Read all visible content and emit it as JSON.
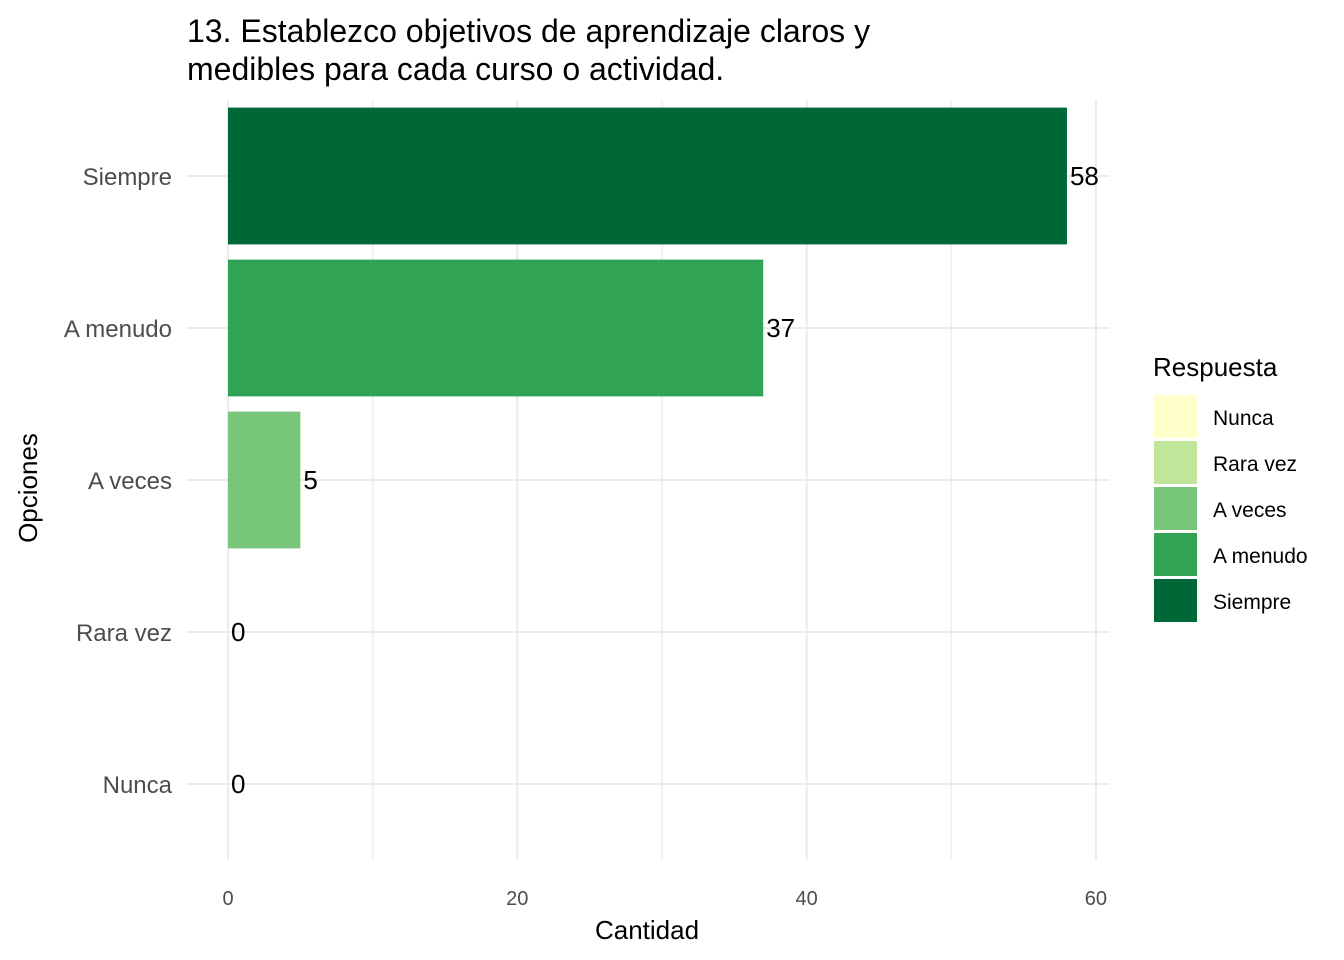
{
  "chart_data": {
    "type": "bar",
    "orientation": "horizontal",
    "title_lines": [
      "13. Establezco objetivos de aprendizaje claros y",
      "medibles para cada curso o actividad."
    ],
    "xlabel": "Cantidad",
    "ylabel": "Opciones",
    "categories": [
      "Nunca",
      "Rara vez",
      "A veces",
      "A menudo",
      "Siempre"
    ],
    "values": [
      0,
      0,
      5,
      37,
      58
    ],
    "colors": [
      "#ffffcc",
      "#c2e699",
      "#78c679",
      "#31a354",
      "#006837"
    ],
    "xlim": [
      0,
      61
    ],
    "xticks": [
      0,
      20,
      40,
      60
    ],
    "grid": true,
    "legend": {
      "title": "Respuesta",
      "position": "right",
      "entries": [
        "Nunca",
        "Rara vez",
        "A veces",
        "A menudo",
        "Siempre"
      ]
    }
  }
}
